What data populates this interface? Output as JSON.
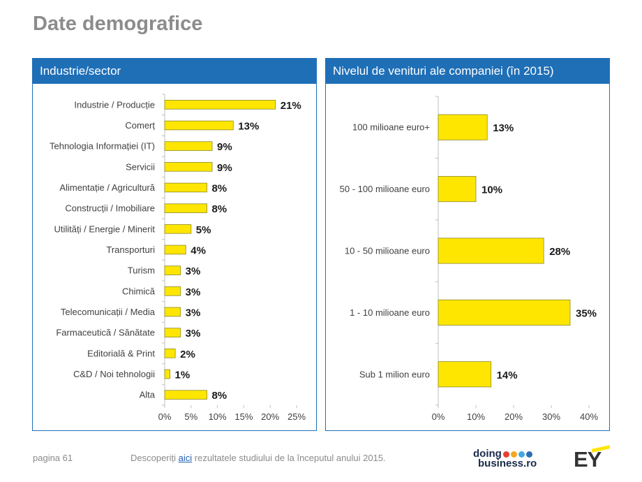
{
  "page": {
    "title": "Date demografice",
    "page_label": "pagina 61",
    "footer_before": "Descoperiți ",
    "footer_link": "aici",
    "footer_after": " rezultatele studiului de la începutul anului 2015.",
    "logo_doing_line1": "doing",
    "logo_doing_line2": "business.ro",
    "logo_ey": "EY"
  },
  "colors": {
    "accent": "#1f6fb7",
    "bar_fill": "#ffe600",
    "bar_stroke": "#8a8a2a",
    "dots": [
      "#e8402e",
      "#f5a623",
      "#3fa9e0",
      "#2d6db5"
    ]
  },
  "chart_data": [
    {
      "type": "bar",
      "orientation": "horizontal",
      "title": "Industrie/sector",
      "categories": [
        "Industrie / Producție",
        "Comerț",
        "Tehnologia Informației (IT)",
        "Servicii",
        "Alimentație / Agricultură",
        "Construcții / Imobiliare",
        "Utilități / Energie / Minerit",
        "Transporturi",
        "Turism",
        "Chimică",
        "Telecomunicații / Media",
        "Farmaceutică / Sănătate",
        "Editorială & Print",
        "C&D / Noi tehnologii",
        "Alta"
      ],
      "values": [
        21,
        13,
        9,
        9,
        8,
        8,
        5,
        4,
        3,
        3,
        3,
        3,
        2,
        1,
        8
      ],
      "value_labels": [
        "21%",
        "13%",
        "9%",
        "9%",
        "8%",
        "8%",
        "5%",
        "4%",
        "3%",
        "3%",
        "3%",
        "3%",
        "2%",
        "1%",
        "8%"
      ],
      "xlim": [
        0,
        25
      ],
      "ticks": [
        0,
        5,
        10,
        15,
        20,
        25
      ],
      "tick_labels": [
        "0%",
        "5%",
        "10%",
        "15%",
        "20%",
        "25%"
      ],
      "grid": false
    },
    {
      "type": "bar",
      "orientation": "horizontal",
      "title": "Nivelul de venituri ale companiei (în 2015)",
      "categories": [
        "100 milioane euro+",
        "50 - 100 milioane euro",
        "10 - 50 milioane euro",
        "1 - 10 milioane euro",
        "Sub 1 milion euro"
      ],
      "values": [
        13,
        10,
        28,
        35,
        14
      ],
      "value_labels": [
        "13%",
        "10%",
        "28%",
        "35%",
        "14%"
      ],
      "xlim": [
        0,
        40
      ],
      "ticks": [
        0,
        10,
        20,
        30,
        40
      ],
      "tick_labels": [
        "0%",
        "10%",
        "20%",
        "30%",
        "40%"
      ],
      "grid": false
    }
  ]
}
